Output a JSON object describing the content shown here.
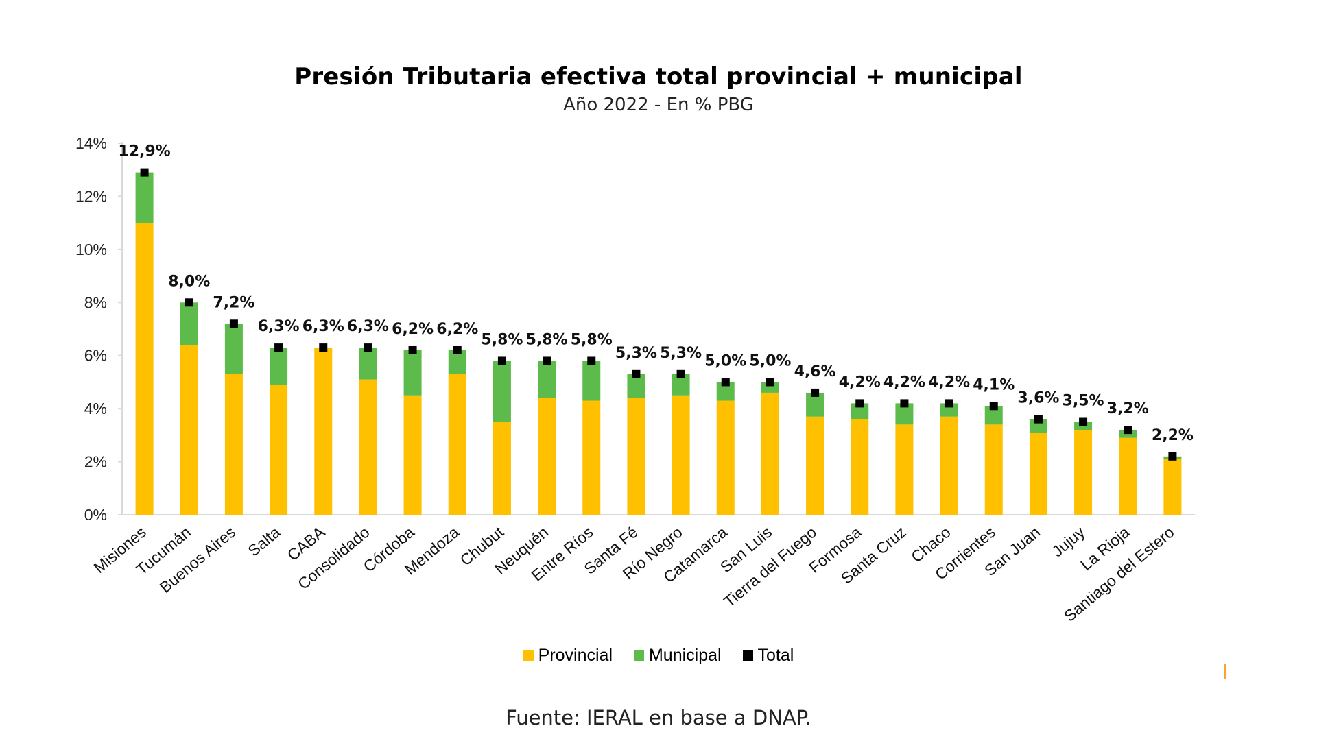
{
  "title": "Presión Tributaria efectiva total provincial + municipal",
  "subtitle": "Año 2022 - En % PBG",
  "source": "Fuente: IERAL en base a DNAP.",
  "colors": {
    "provincial": "#FFC000",
    "municipal": "#5CBB4A",
    "total": "#000000",
    "axis": "#d9d9d9",
    "accent": "#f0a830"
  },
  "legend": [
    {
      "key": "provincial",
      "label": "Provincial"
    },
    {
      "key": "municipal",
      "label": "Municipal"
    },
    {
      "key": "total",
      "label": "Total"
    }
  ],
  "chart_data": {
    "type": "bar",
    "stacked": true,
    "title": "Presión Tributaria efectiva total provincial + municipal",
    "subtitle": "Año 2022 - En % PBG",
    "ylim": [
      0,
      14
    ],
    "yticks": [
      "0%",
      "2%",
      "4%",
      "6%",
      "8%",
      "10%",
      "12%",
      "14%"
    ],
    "grid": false,
    "legend_position": "bottom",
    "categories": [
      "Misiones",
      "Tucumán",
      "Buenos Aires",
      "Salta",
      "CABA",
      "Consolidado",
      "Córdoba",
      "Mendoza",
      "Chubut",
      "Neuquén",
      "Entre Ríos",
      "Santa Fé",
      "Río Negro",
      "Catamarca",
      "San Luis",
      "Tierra del Fuego",
      "Formosa",
      "Santa Cruz",
      "Chaco",
      "Corrientes",
      "San Juan",
      "Jujuy",
      "La Rioja",
      "Santiago del Estero"
    ],
    "series": [
      {
        "name": "Provincial",
        "values": [
          11.0,
          6.4,
          5.3,
          4.9,
          6.3,
          5.1,
          4.5,
          5.3,
          3.5,
          4.4,
          4.3,
          4.4,
          4.5,
          4.3,
          4.6,
          3.7,
          3.6,
          3.4,
          3.7,
          3.4,
          3.1,
          3.2,
          2.9,
          2.1
        ]
      },
      {
        "name": "Municipal",
        "values": [
          1.9,
          1.6,
          1.9,
          1.4,
          0.0,
          1.2,
          1.7,
          0.9,
          2.3,
          1.4,
          1.5,
          0.9,
          0.8,
          0.7,
          0.4,
          0.9,
          0.6,
          0.8,
          0.5,
          0.7,
          0.5,
          0.3,
          0.3,
          0.1
        ]
      },
      {
        "name": "Total",
        "values": [
          12.9,
          8.0,
          7.2,
          6.3,
          6.3,
          6.3,
          6.2,
          6.2,
          5.8,
          5.8,
          5.8,
          5.3,
          5.3,
          5.0,
          5.0,
          4.6,
          4.2,
          4.2,
          4.2,
          4.1,
          3.6,
          3.5,
          3.2,
          2.2
        ]
      }
    ],
    "data_labels": [
      "12,9%",
      "8,0%",
      "7,2%",
      "6,3%",
      "6,3%",
      "6,3%",
      "6,2%",
      "6,2%",
      "5,8%",
      "5,8%",
      "5,8%",
      "5,3%",
      "5,3%",
      "5,0%",
      "5,0%",
      "4,6%",
      "4,2%",
      "4,2%",
      "4,2%",
      "4,1%",
      "3,6%",
      "3,5%",
      "3,2%",
      "2,2%"
    ]
  }
}
